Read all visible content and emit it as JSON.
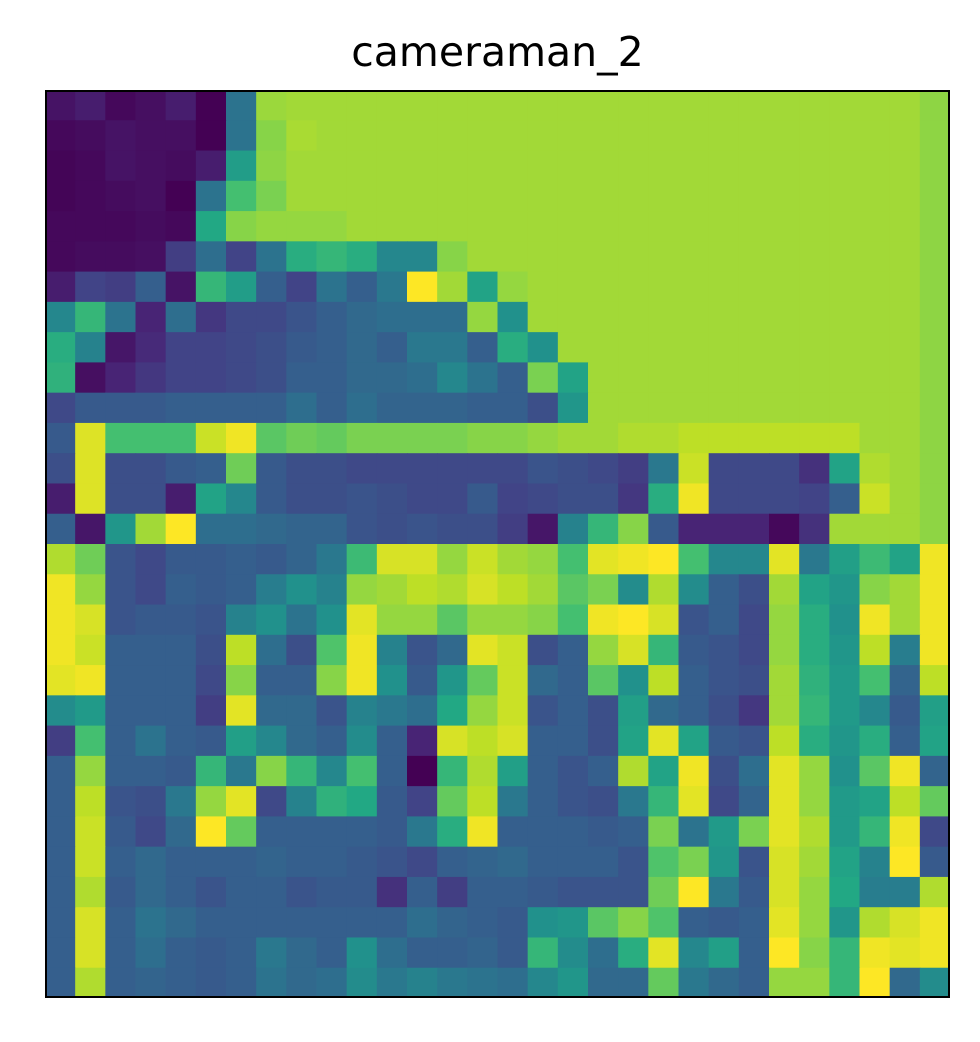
{
  "chart_data": {
    "type": "heatmap",
    "title": "cameraman_2",
    "xlabel": "",
    "ylabel": "",
    "colormap": "viridis",
    "value_range": [
      0,
      1
    ],
    "axes_ticks": "none",
    "grid": false,
    "rows": 30,
    "cols": 30,
    "values": [
      [
        0.05,
        0.08,
        0.02,
        0.04,
        0.08,
        0.0,
        0.38,
        0.85,
        0.86,
        0.86,
        0.86,
        0.86,
        0.86,
        0.86,
        0.86,
        0.86,
        0.86,
        0.86,
        0.86,
        0.86,
        0.86,
        0.86,
        0.86,
        0.86,
        0.86,
        0.86,
        0.86,
        0.86,
        0.86,
        0.83
      ],
      [
        0.02,
        0.03,
        0.05,
        0.04,
        0.04,
        0.0,
        0.38,
        0.82,
        0.87,
        0.86,
        0.86,
        0.86,
        0.86,
        0.86,
        0.86,
        0.86,
        0.86,
        0.86,
        0.86,
        0.86,
        0.86,
        0.86,
        0.86,
        0.86,
        0.86,
        0.86,
        0.86,
        0.86,
        0.86,
        0.83
      ],
      [
        0.01,
        0.02,
        0.05,
        0.04,
        0.03,
        0.08,
        0.55,
        0.83,
        0.86,
        0.86,
        0.86,
        0.86,
        0.86,
        0.86,
        0.86,
        0.86,
        0.86,
        0.86,
        0.86,
        0.86,
        0.86,
        0.86,
        0.86,
        0.86,
        0.86,
        0.86,
        0.86,
        0.86,
        0.86,
        0.83
      ],
      [
        0.01,
        0.02,
        0.03,
        0.04,
        0.0,
        0.38,
        0.7,
        0.8,
        0.86,
        0.86,
        0.86,
        0.86,
        0.86,
        0.86,
        0.86,
        0.86,
        0.86,
        0.86,
        0.86,
        0.86,
        0.86,
        0.86,
        0.86,
        0.86,
        0.86,
        0.86,
        0.86,
        0.86,
        0.86,
        0.83
      ],
      [
        0.02,
        0.02,
        0.02,
        0.03,
        0.02,
        0.6,
        0.82,
        0.84,
        0.84,
        0.84,
        0.86,
        0.86,
        0.86,
        0.86,
        0.86,
        0.86,
        0.86,
        0.86,
        0.86,
        0.86,
        0.86,
        0.86,
        0.86,
        0.86,
        0.86,
        0.86,
        0.86,
        0.86,
        0.86,
        0.83
      ],
      [
        0.02,
        0.03,
        0.03,
        0.04,
        0.18,
        0.36,
        0.2,
        0.38,
        0.62,
        0.66,
        0.62,
        0.46,
        0.46,
        0.82,
        0.86,
        0.86,
        0.86,
        0.86,
        0.86,
        0.86,
        0.86,
        0.86,
        0.86,
        0.86,
        0.86,
        0.86,
        0.86,
        0.86,
        0.86,
        0.83
      ],
      [
        0.08,
        0.2,
        0.18,
        0.3,
        0.05,
        0.66,
        0.55,
        0.3,
        0.2,
        0.38,
        0.3,
        0.4,
        1.0,
        0.86,
        0.58,
        0.84,
        0.86,
        0.86,
        0.86,
        0.86,
        0.86,
        0.86,
        0.86,
        0.86,
        0.86,
        0.86,
        0.86,
        0.86,
        0.86,
        0.83
      ],
      [
        0.46,
        0.66,
        0.38,
        0.1,
        0.36,
        0.16,
        0.22,
        0.22,
        0.26,
        0.3,
        0.34,
        0.36,
        0.36,
        0.36,
        0.84,
        0.5,
        0.86,
        0.86,
        0.86,
        0.86,
        0.86,
        0.86,
        0.86,
        0.86,
        0.86,
        0.86,
        0.86,
        0.86,
        0.86,
        0.83
      ],
      [
        0.62,
        0.44,
        0.06,
        0.12,
        0.2,
        0.2,
        0.22,
        0.24,
        0.28,
        0.3,
        0.34,
        0.3,
        0.4,
        0.4,
        0.3,
        0.62,
        0.5,
        0.86,
        0.86,
        0.86,
        0.86,
        0.86,
        0.86,
        0.86,
        0.86,
        0.86,
        0.86,
        0.86,
        0.86,
        0.83
      ],
      [
        0.64,
        0.04,
        0.1,
        0.16,
        0.2,
        0.2,
        0.22,
        0.24,
        0.3,
        0.3,
        0.34,
        0.34,
        0.36,
        0.46,
        0.38,
        0.3,
        0.8,
        0.58,
        0.86,
        0.86,
        0.86,
        0.86,
        0.86,
        0.86,
        0.86,
        0.86,
        0.86,
        0.86,
        0.86,
        0.83
      ],
      [
        0.22,
        0.28,
        0.28,
        0.28,
        0.3,
        0.3,
        0.3,
        0.3,
        0.36,
        0.3,
        0.36,
        0.32,
        0.32,
        0.32,
        0.3,
        0.3,
        0.24,
        0.52,
        0.86,
        0.86,
        0.86,
        0.86,
        0.86,
        0.86,
        0.86,
        0.86,
        0.86,
        0.86,
        0.86,
        0.83
      ],
      [
        0.28,
        0.95,
        0.7,
        0.7,
        0.7,
        0.92,
        0.98,
        0.74,
        0.78,
        0.76,
        0.8,
        0.8,
        0.8,
        0.8,
        0.82,
        0.82,
        0.84,
        0.86,
        0.86,
        0.88,
        0.88,
        0.9,
        0.9,
        0.9,
        0.9,
        0.9,
        0.9,
        0.86,
        0.86,
        0.83
      ],
      [
        0.24,
        0.95,
        0.24,
        0.24,
        0.28,
        0.3,
        0.78,
        0.28,
        0.24,
        0.24,
        0.22,
        0.22,
        0.22,
        0.22,
        0.22,
        0.22,
        0.26,
        0.24,
        0.22,
        0.18,
        0.4,
        0.92,
        0.22,
        0.22,
        0.22,
        0.14,
        0.58,
        0.88,
        0.86,
        0.83
      ],
      [
        0.08,
        0.95,
        0.24,
        0.24,
        0.08,
        0.58,
        0.46,
        0.28,
        0.24,
        0.24,
        0.26,
        0.24,
        0.22,
        0.22,
        0.28,
        0.2,
        0.22,
        0.24,
        0.24,
        0.16,
        0.62,
        0.98,
        0.22,
        0.22,
        0.22,
        0.2,
        0.3,
        0.92,
        0.86,
        0.83
      ],
      [
        0.3,
        0.06,
        0.52,
        0.86,
        1.0,
        0.36,
        0.36,
        0.34,
        0.32,
        0.32,
        0.26,
        0.24,
        0.26,
        0.24,
        0.24,
        0.18,
        0.06,
        0.44,
        0.66,
        0.82,
        0.28,
        0.1,
        0.1,
        0.1,
        0.02,
        0.14,
        0.86,
        0.86,
        0.86,
        0.83
      ],
      [
        0.88,
        0.78,
        0.26,
        0.22,
        0.28,
        0.28,
        0.3,
        0.28,
        0.32,
        0.4,
        0.68,
        0.94,
        0.94,
        0.84,
        0.92,
        0.86,
        0.84,
        0.7,
        0.96,
        0.98,
        1.0,
        0.7,
        0.46,
        0.46,
        0.96,
        0.4,
        0.56,
        0.68,
        0.58,
        0.98
      ],
      [
        0.98,
        0.84,
        0.26,
        0.22,
        0.3,
        0.28,
        0.3,
        0.42,
        0.5,
        0.44,
        0.84,
        0.86,
        0.9,
        0.88,
        0.94,
        0.9,
        0.86,
        0.74,
        0.8,
        0.48,
        0.88,
        0.48,
        0.3,
        0.24,
        0.86,
        0.58,
        0.52,
        0.82,
        0.86,
        0.98
      ],
      [
        0.98,
        0.94,
        0.26,
        0.28,
        0.28,
        0.26,
        0.44,
        0.5,
        0.38,
        0.5,
        0.96,
        0.84,
        0.84,
        0.74,
        0.84,
        0.84,
        0.82,
        0.7,
        0.98,
        1.0,
        0.94,
        0.26,
        0.3,
        0.22,
        0.84,
        0.62,
        0.5,
        0.98,
        0.86,
        0.98
      ],
      [
        0.98,
        0.92,
        0.3,
        0.3,
        0.3,
        0.24,
        0.9,
        0.36,
        0.24,
        0.72,
        0.98,
        0.44,
        0.26,
        0.34,
        0.96,
        0.92,
        0.24,
        0.3,
        0.84,
        0.94,
        0.66,
        0.28,
        0.26,
        0.22,
        0.84,
        0.62,
        0.52,
        0.9,
        0.42,
        0.98
      ],
      [
        0.96,
        0.98,
        0.3,
        0.3,
        0.3,
        0.22,
        0.82,
        0.3,
        0.3,
        0.82,
        0.98,
        0.5,
        0.28,
        0.52,
        0.76,
        0.92,
        0.34,
        0.3,
        0.74,
        0.5,
        0.9,
        0.3,
        0.26,
        0.24,
        0.86,
        0.64,
        0.54,
        0.7,
        0.32,
        0.9
      ],
      [
        0.48,
        0.54,
        0.3,
        0.3,
        0.3,
        0.18,
        0.96,
        0.34,
        0.34,
        0.26,
        0.44,
        0.4,
        0.36,
        0.6,
        0.84,
        0.92,
        0.26,
        0.3,
        0.24,
        0.56,
        0.34,
        0.3,
        0.24,
        0.16,
        0.86,
        0.66,
        0.54,
        0.46,
        0.28,
        0.56
      ],
      [
        0.18,
        0.7,
        0.3,
        0.38,
        0.3,
        0.28,
        0.56,
        0.46,
        0.34,
        0.3,
        0.48,
        0.3,
        0.1,
        0.94,
        0.9,
        0.94,
        0.3,
        0.3,
        0.24,
        0.58,
        0.96,
        0.58,
        0.28,
        0.26,
        0.9,
        0.62,
        0.52,
        0.62,
        0.3,
        0.58
      ],
      [
        0.3,
        0.84,
        0.3,
        0.3,
        0.28,
        0.66,
        0.4,
        0.82,
        0.66,
        0.46,
        0.7,
        0.3,
        0.0,
        0.66,
        0.88,
        0.56,
        0.3,
        0.26,
        0.3,
        0.88,
        0.58,
        0.98,
        0.24,
        0.36,
        0.96,
        0.84,
        0.5,
        0.74,
        0.98,
        0.32
      ],
      [
        0.3,
        0.9,
        0.26,
        0.24,
        0.4,
        0.84,
        0.96,
        0.22,
        0.44,
        0.64,
        0.6,
        0.28,
        0.2,
        0.76,
        0.9,
        0.4,
        0.3,
        0.26,
        0.24,
        0.4,
        0.66,
        0.96,
        0.22,
        0.32,
        0.96,
        0.84,
        0.54,
        0.58,
        0.9,
        0.76
      ],
      [
        0.3,
        0.92,
        0.28,
        0.22,
        0.34,
        1.0,
        0.76,
        0.3,
        0.3,
        0.3,
        0.3,
        0.28,
        0.4,
        0.62,
        0.98,
        0.3,
        0.3,
        0.3,
        0.28,
        0.3,
        0.8,
        0.38,
        0.54,
        0.8,
        0.96,
        0.88,
        0.54,
        0.66,
        0.98,
        0.22
      ],
      [
        0.3,
        0.92,
        0.3,
        0.34,
        0.3,
        0.3,
        0.3,
        0.32,
        0.3,
        0.3,
        0.28,
        0.26,
        0.22,
        0.3,
        0.32,
        0.34,
        0.3,
        0.3,
        0.3,
        0.26,
        0.72,
        0.8,
        0.52,
        0.26,
        0.94,
        0.86,
        0.58,
        0.44,
        1.0,
        0.28
      ],
      [
        0.3,
        0.88,
        0.28,
        0.34,
        0.3,
        0.26,
        0.3,
        0.3,
        0.26,
        0.28,
        0.28,
        0.14,
        0.3,
        0.18,
        0.3,
        0.3,
        0.28,
        0.26,
        0.26,
        0.26,
        0.78,
        1.0,
        0.4,
        0.28,
        0.94,
        0.84,
        0.6,
        0.42,
        0.42,
        0.88
      ],
      [
        0.3,
        0.94,
        0.3,
        0.38,
        0.34,
        0.3,
        0.3,
        0.3,
        0.3,
        0.3,
        0.3,
        0.3,
        0.36,
        0.32,
        0.3,
        0.28,
        0.5,
        0.52,
        0.74,
        0.82,
        0.72,
        0.3,
        0.28,
        0.3,
        0.96,
        0.84,
        0.52,
        0.88,
        0.94,
        0.98
      ],
      [
        0.3,
        0.94,
        0.3,
        0.36,
        0.3,
        0.28,
        0.3,
        0.4,
        0.34,
        0.3,
        0.5,
        0.36,
        0.3,
        0.3,
        0.32,
        0.28,
        0.66,
        0.48,
        0.36,
        0.62,
        0.96,
        0.46,
        0.56,
        0.3,
        1.0,
        0.82,
        0.66,
        0.98,
        0.96,
        0.98
      ],
      [
        0.3,
        0.88,
        0.3,
        0.32,
        0.3,
        0.28,
        0.3,
        0.38,
        0.34,
        0.36,
        0.48,
        0.4,
        0.44,
        0.4,
        0.38,
        0.36,
        0.46,
        0.52,
        0.34,
        0.34,
        0.76,
        0.4,
        0.34,
        0.3,
        0.84,
        0.84,
        0.66,
        1.0,
        0.34,
        0.48
      ]
    ]
  }
}
